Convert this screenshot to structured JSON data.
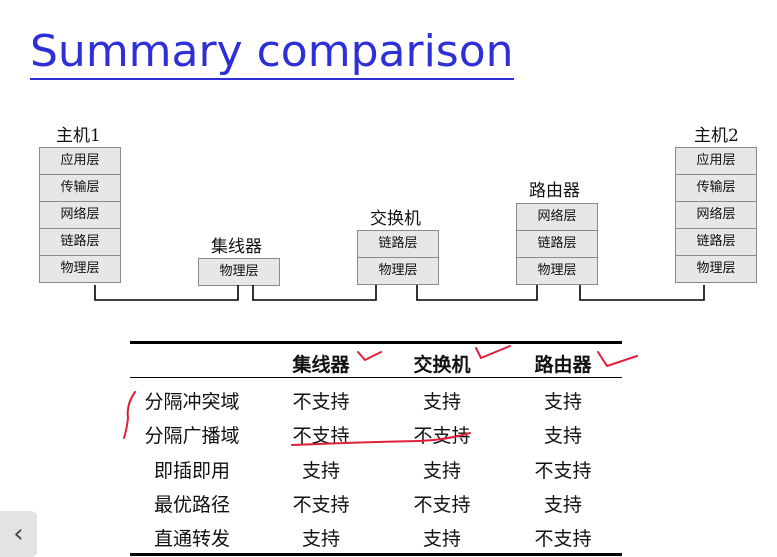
{
  "title": "Summary comparison",
  "devices": {
    "host1": "主机1",
    "host2": "主机2",
    "hub": "集线器",
    "switch": "交换机",
    "router": "路由器"
  },
  "layers": {
    "app": "应用层",
    "transport": "传输层",
    "network": "网络层",
    "link": "链路层",
    "physical": "物理层"
  },
  "table": {
    "headers": [
      "集线器",
      "交换机",
      "路由器"
    ],
    "rows": [
      {
        "label": "分隔冲突域",
        "values": [
          "不支持",
          "支持",
          "支持"
        ]
      },
      {
        "label": "分隔广播域",
        "values": [
          "不支持",
          "不支持",
          "支持"
        ]
      },
      {
        "label": "即插即用",
        "values": [
          "支持",
          "支持",
          "不支持"
        ]
      },
      {
        "label": "最优路径",
        "values": [
          "不支持",
          "不支持",
          "支持"
        ]
      },
      {
        "label": "直通转发",
        "values": [
          "支持",
          "支持",
          "不支持"
        ]
      }
    ]
  },
  "nav": {
    "prev_icon": "‹"
  },
  "colors": {
    "title": "#2e2fd6",
    "annotation": "#e0203a"
  }
}
